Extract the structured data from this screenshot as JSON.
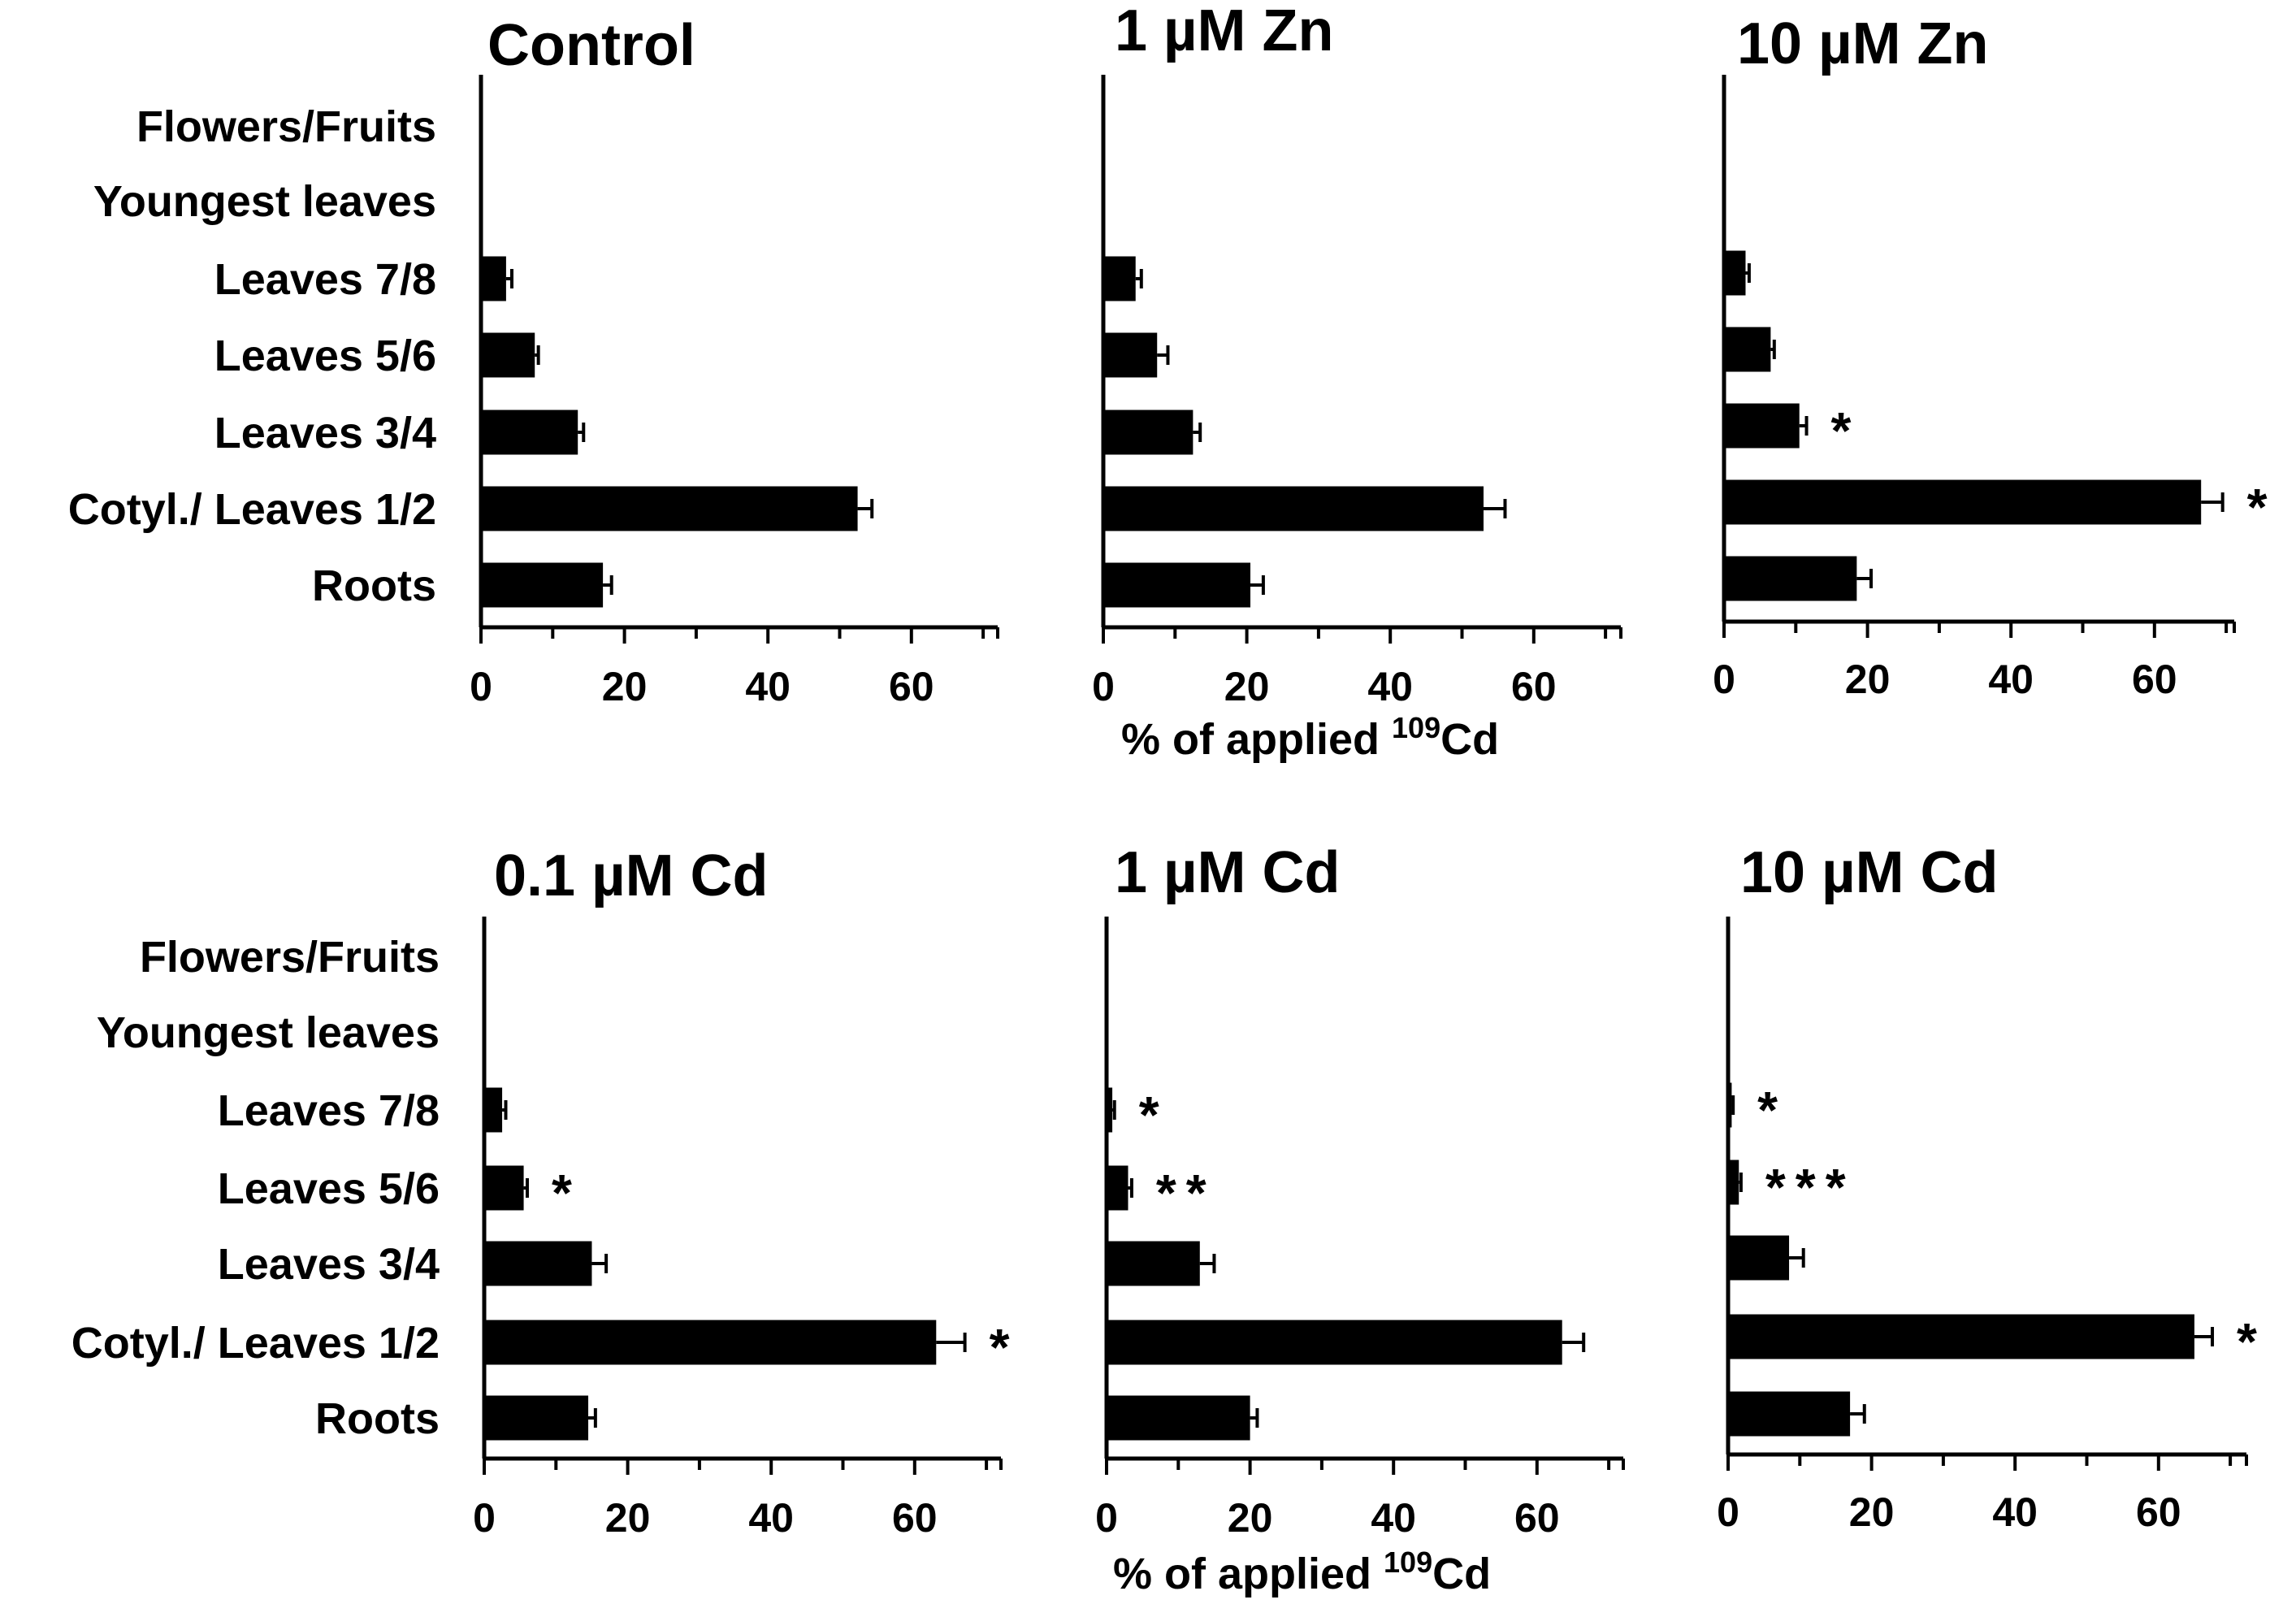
{
  "figure": {
    "x_axis_label": "% of applied ",
    "x_axis_label_superscript": "109",
    "x_axis_label_suffix": "Cd"
  },
  "colors": {
    "bar": "#000000",
    "sig_red": "#ff2020",
    "sig_black": "#000000"
  },
  "chart_data": [
    {
      "type": "bar",
      "orientation": "horizontal",
      "title": "Control",
      "categories": [
        "Flowers/Fruits",
        "Youngest leaves",
        "Leaves 7/8",
        "Leaves 5/6",
        "Leaves 3/4",
        "Cotyl./ Leaves 1/2",
        "Roots"
      ],
      "values": [
        0,
        0,
        3.5,
        7.5,
        13.5,
        52.5,
        17
      ],
      "errors": [
        0,
        0,
        0.8,
        0.5,
        0.8,
        2,
        1.2
      ],
      "significance": [
        {
          "category": "Flowers/Fruits",
          "label": "",
          "color": ""
        },
        {
          "category": "Youngest leaves",
          "label": "",
          "color": ""
        },
        {
          "category": "Leaves 7/8",
          "label": "",
          "color": ""
        },
        {
          "category": "Leaves 5/6",
          "label": "",
          "color": ""
        },
        {
          "category": "Leaves 3/4",
          "label": "",
          "color": ""
        },
        {
          "category": "Cotyl./ Leaves 1/2",
          "label": "",
          "color": ""
        },
        {
          "category": "Roots",
          "label": "",
          "color": ""
        }
      ],
      "xlim": [
        0,
        72
      ],
      "xticks": [
        0,
        20,
        40,
        60
      ],
      "show_category_labels": true,
      "xlabel": ""
    },
    {
      "type": "bar",
      "orientation": "horizontal",
      "title": "1 µM Zn",
      "categories": [
        "Flowers/Fruits",
        "Youngest leaves",
        "Leaves 7/8",
        "Leaves 5/6",
        "Leaves 3/4",
        "Cotyl./ Leaves 1/2",
        "Roots"
      ],
      "values": [
        0,
        0,
        4.5,
        7.5,
        12.5,
        53,
        20.5
      ],
      "errors": [
        0,
        0,
        0.8,
        1.5,
        1,
        3,
        1.8
      ],
      "significance": [
        {
          "category": "Flowers/Fruits",
          "label": "",
          "color": ""
        },
        {
          "category": "Youngest leaves",
          "label": "",
          "color": ""
        },
        {
          "category": "Leaves 7/8",
          "label": "",
          "color": ""
        },
        {
          "category": "Leaves 5/6",
          "label": "",
          "color": ""
        },
        {
          "category": "Leaves 3/4",
          "label": "",
          "color": ""
        },
        {
          "category": "Cotyl./ Leaves 1/2",
          "label": "",
          "color": ""
        },
        {
          "category": "Roots",
          "label": "",
          "color": ""
        }
      ],
      "xlim": [
        0,
        72
      ],
      "xticks": [
        0,
        20,
        40,
        60
      ],
      "show_category_labels": false,
      "xlabel": "% of applied 109Cd"
    },
    {
      "type": "bar",
      "orientation": "horizontal",
      "title": "10 µM Zn",
      "categories": [
        "Flowers/Fruits",
        "Youngest leaves",
        "Leaves 7/8",
        "Leaves 5/6",
        "Leaves 3/4",
        "Cotyl./ Leaves 1/2",
        "Roots"
      ],
      "values": [
        0,
        0,
        3,
        6.5,
        10.5,
        66.5,
        18.5
      ],
      "errors": [
        0,
        0,
        0.5,
        0.5,
        1,
        3,
        2
      ],
      "significance": [
        {
          "category": "Flowers/Fruits",
          "label": "",
          "color": ""
        },
        {
          "category": "Youngest leaves",
          "label": "",
          "color": ""
        },
        {
          "category": "Leaves 7/8",
          "label": "",
          "color": ""
        },
        {
          "category": "Leaves 5/6",
          "label": "",
          "color": ""
        },
        {
          "category": "Leaves 3/4",
          "label": "*",
          "color": "#ff2020"
        },
        {
          "category": "Cotyl./ Leaves 1/2",
          "label": "*",
          "color": "#000000"
        },
        {
          "category": "Roots",
          "label": "",
          "color": ""
        }
      ],
      "xlim": [
        0,
        72
      ],
      "xticks": [
        0,
        20,
        40,
        60
      ],
      "show_category_labels": false,
      "xlabel": ""
    },
    {
      "type": "bar",
      "orientation": "horizontal",
      "title": "0.1 µM Cd",
      "categories": [
        "Flowers/Fruits",
        "Youngest leaves",
        "Leaves 7/8",
        "Leaves 5/6",
        "Leaves 3/4",
        "Cotyl./ Leaves 1/2",
        "Roots"
      ],
      "values": [
        0,
        0,
        2.5,
        5.5,
        15,
        63,
        14.5
      ],
      "errors": [
        0,
        0,
        0.5,
        0.5,
        2,
        4,
        1
      ],
      "significance": [
        {
          "category": "Flowers/Fruits",
          "label": "",
          "color": ""
        },
        {
          "category": "Youngest leaves",
          "label": "",
          "color": ""
        },
        {
          "category": "Leaves 7/8",
          "label": "",
          "color": ""
        },
        {
          "category": "Leaves 5/6",
          "label": "*",
          "color": "#ff2020"
        },
        {
          "category": "Leaves 3/4",
          "label": "",
          "color": ""
        },
        {
          "category": "Cotyl./ Leaves 1/2",
          "label": "*",
          "color": "#000000"
        },
        {
          "category": "Roots",
          "label": "",
          "color": ""
        }
      ],
      "xlim": [
        0,
        72
      ],
      "xticks": [
        0,
        20,
        40,
        60
      ],
      "show_category_labels": true,
      "xlabel": ""
    },
    {
      "type": "bar",
      "orientation": "horizontal",
      "title": "1 µM Cd",
      "categories": [
        "Flowers/Fruits",
        "Youngest leaves",
        "Leaves 7/8",
        "Leaves 5/6",
        "Leaves 3/4",
        "Cotyl./ Leaves 1/2",
        "Roots"
      ],
      "values": [
        0,
        0,
        0.8,
        3,
        13,
        63.5,
        20
      ],
      "errors": [
        0,
        0,
        0.3,
        0.5,
        2,
        3,
        1
      ],
      "significance": [
        {
          "category": "Flowers/Fruits",
          "label": "",
          "color": ""
        },
        {
          "category": "Youngest leaves",
          "label": "",
          "color": ""
        },
        {
          "category": "Leaves 7/8",
          "label": "*",
          "color": "#ff2020"
        },
        {
          "category": "Leaves 5/6",
          "label": "**",
          "color": "#ff2020"
        },
        {
          "category": "Leaves 3/4",
          "label": "",
          "color": ""
        },
        {
          "category": "Cotyl./ Leaves 1/2",
          "label": "",
          "color": ""
        },
        {
          "category": "Roots",
          "label": "",
          "color": ""
        }
      ],
      "xlim": [
        0,
        72
      ],
      "xticks": [
        0,
        20,
        40,
        60
      ],
      "show_category_labels": false,
      "xlabel": "% of applied 109Cd"
    },
    {
      "type": "bar",
      "orientation": "horizontal",
      "title": "10 µM Cd",
      "categories": [
        "Flowers/Fruits",
        "Youngest leaves",
        "Leaves 7/8",
        "Leaves 5/6",
        "Leaves 3/4",
        "Cotyl./ Leaves 1/2",
        "Roots"
      ],
      "values": [
        0,
        0,
        0.5,
        1.5,
        8.5,
        65,
        17
      ],
      "errors": [
        0,
        0,
        0.2,
        0.3,
        2,
        2.5,
        2
      ],
      "significance": [
        {
          "category": "Flowers/Fruits",
          "label": "",
          "color": ""
        },
        {
          "category": "Youngest leaves",
          "label": "",
          "color": ""
        },
        {
          "category": "Leaves 7/8",
          "label": "*",
          "color": "#ff2020"
        },
        {
          "category": "Leaves 5/6",
          "label": "***",
          "color": "#ff2020"
        },
        {
          "category": "Leaves 3/4",
          "label": "",
          "color": ""
        },
        {
          "category": "Cotyl./ Leaves 1/2",
          "label": "*",
          "color": "#000000"
        },
        {
          "category": "Roots",
          "label": "",
          "color": ""
        }
      ],
      "xlim": [
        0,
        72
      ],
      "xticks": [
        0,
        20,
        40,
        60
      ],
      "show_category_labels": false,
      "xlabel": ""
    }
  ]
}
